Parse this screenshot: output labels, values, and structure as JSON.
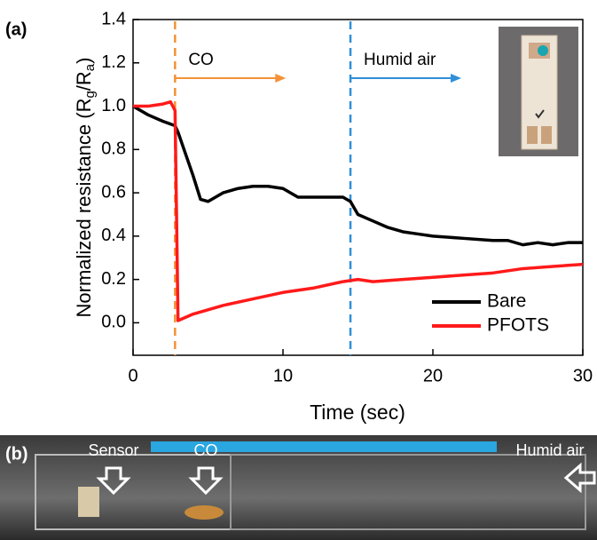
{
  "chart_data": {
    "type": "line",
    "panel_label": "(a)",
    "xlabel": "Time (sec)",
    "ylabel": [
      "Normalized resistance (R",
      "g",
      "/R",
      "a",
      ")"
    ],
    "xlim": [
      0,
      30
    ],
    "xticks": [
      0,
      10,
      20,
      30
    ],
    "ylim": [
      -0.15,
      1.4
    ],
    "yticks": [
      {
        "value": 0,
        "label": "0.0"
      },
      0.2,
      0.4,
      0.6,
      0.8,
      {
        "value": 1,
        "label": "1.0"
      },
      1.2,
      1.4
    ],
    "legend": "lower right",
    "series": [
      {
        "name": "Bare",
        "color": "#000000",
        "x": [
          0,
          1,
          2,
          2.8,
          3,
          3.5,
          4,
          4.5,
          5,
          6,
          7,
          8,
          9,
          10,
          11,
          12,
          13,
          14,
          14.5,
          15,
          16,
          17,
          18,
          19,
          20,
          22,
          24,
          25,
          26,
          27,
          28,
          29,
          30
        ],
        "values": [
          1.0,
          0.96,
          0.93,
          0.91,
          0.88,
          0.78,
          0.68,
          0.57,
          0.56,
          0.6,
          0.62,
          0.63,
          0.63,
          0.62,
          0.58,
          0.58,
          0.58,
          0.58,
          0.56,
          0.5,
          0.47,
          0.44,
          0.42,
          0.41,
          0.4,
          0.39,
          0.38,
          0.38,
          0.36,
          0.37,
          0.36,
          0.37,
          0.37
        ]
      },
      {
        "name": "PFOTS",
        "color": "#ff1a1a",
        "x": [
          0,
          1,
          2,
          2.5,
          2.8,
          2.9,
          3,
          4,
          5,
          6,
          8,
          10,
          12,
          14,
          15,
          16,
          18,
          20,
          22,
          24,
          26,
          28,
          30
        ],
        "values": [
          1.0,
          1.0,
          1.01,
          1.02,
          0.98,
          0.5,
          0.01,
          0.04,
          0.06,
          0.08,
          0.11,
          0.14,
          0.16,
          0.19,
          0.2,
          0.19,
          0.2,
          0.21,
          0.22,
          0.23,
          0.25,
          0.26,
          0.27
        ]
      }
    ],
    "annotations": [
      {
        "text": "CO",
        "x": 2.8,
        "color": "#f39237"
      },
      {
        "text": "Humid air",
        "x": 14.5,
        "color": "#2f8fd8"
      }
    ]
  },
  "photo": {
    "label": "(b)",
    "texts": [
      "Sensor",
      "CO",
      "Humid air"
    ]
  }
}
